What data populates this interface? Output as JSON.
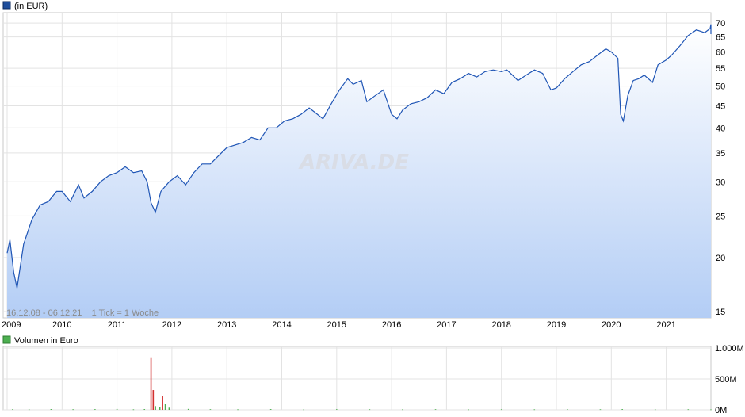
{
  "price_legend": {
    "label": "(in EUR)",
    "color": "#1f4e9c"
  },
  "volume_legend": {
    "label": "Volumen in Euro",
    "color": "#4caf50"
  },
  "info_text": "16.12.08 - 06.12.21    1 Tick = 1 Woche",
  "watermark": "ARIVA.DE",
  "chart_data": [
    {
      "type": "area",
      "scale": "log",
      "x_tick_labels": [
        "2009",
        "2010",
        "2011",
        "2012",
        "2013",
        "2014",
        "2015",
        "2016",
        "2017",
        "2018",
        "2019",
        "2020",
        "2021"
      ],
      "y_tick_labels": [
        "15",
        "20",
        "25",
        "30",
        "35",
        "40",
        "45",
        "50",
        "55",
        "60",
        "65",
        "70"
      ],
      "ylim": [
        14.5,
        74
      ],
      "grid": true,
      "x": [
        2009.0,
        2009.05,
        2009.12,
        2009.18,
        2009.3,
        2009.45,
        2009.6,
        2009.75,
        2009.9,
        2010.0,
        2010.15,
        2010.3,
        2010.4,
        2010.55,
        2010.7,
        2010.85,
        2011.0,
        2011.15,
        2011.3,
        2011.45,
        2011.55,
        2011.62,
        2011.7,
        2011.8,
        2011.95,
        2012.1,
        2012.25,
        2012.4,
        2012.55,
        2012.7,
        2012.85,
        2013.0,
        2013.15,
        2013.3,
        2013.45,
        2013.6,
        2013.75,
        2013.9,
        2014.05,
        2014.2,
        2014.35,
        2014.5,
        2014.6,
        2014.75,
        2014.9,
        2015.05,
        2015.2,
        2015.3,
        2015.45,
        2015.55,
        2015.7,
        2015.85,
        2016.0,
        2016.1,
        2016.2,
        2016.35,
        2016.5,
        2016.65,
        2016.8,
        2016.95,
        2017.1,
        2017.25,
        2017.4,
        2017.55,
        2017.7,
        2017.85,
        2018.0,
        2018.1,
        2018.2,
        2018.3,
        2018.45,
        2018.6,
        2018.75,
        2018.9,
        2019.0,
        2019.15,
        2019.3,
        2019.45,
        2019.6,
        2019.75,
        2019.9,
        2020.0,
        2020.12,
        2020.17,
        2020.22,
        2020.3,
        2020.4,
        2020.5,
        2020.6,
        2020.75,
        2020.85,
        2021.0,
        2021.1,
        2021.25,
        2021.4,
        2021.55,
        2021.7,
        2021.8,
        2021.9,
        2021.93
      ],
      "y": [
        20.5,
        22.0,
        18.5,
        17.0,
        21.5,
        24.5,
        26.5,
        27.0,
        28.5,
        28.5,
        27.0,
        29.5,
        27.5,
        28.5,
        30.0,
        31.0,
        31.5,
        32.5,
        31.5,
        31.8,
        30.0,
        26.8,
        25.5,
        28.5,
        30.0,
        31.0,
        29.5,
        31.5,
        33.0,
        33.0,
        34.5,
        36.0,
        36.5,
        37.0,
        38.0,
        37.5,
        40.0,
        40.0,
        41.5,
        42.0,
        43.0,
        44.5,
        43.5,
        42.0,
        45.5,
        49.0,
        52.0,
        50.5,
        51.5,
        46.0,
        47.5,
        49.0,
        43.0,
        42.0,
        44.0,
        45.5,
        46.0,
        47.0,
        49.0,
        48.0,
        51.0,
        52.0,
        53.5,
        52.5,
        54.0,
        54.5,
        54.0,
        54.5,
        53.0,
        51.5,
        53.0,
        54.5,
        53.5,
        49.0,
        49.5,
        52.0,
        54.0,
        56.0,
        57.0,
        59.0,
        61.0,
        60.0,
        58.0,
        43.0,
        41.5,
        47.5,
        51.5,
        52.0,
        53.0,
        51.0,
        56.0,
        57.5,
        59.0,
        62.0,
        65.5,
        67.5,
        66.5,
        68.0,
        69.5,
        66.0
      ]
    },
    {
      "type": "bar",
      "y_tick_labels": [
        "1.000M",
        "500M",
        "0M"
      ],
      "ylim": [
        0,
        1000
      ],
      "x": [
        2009.1,
        2009.4,
        2009.8,
        2010.2,
        2010.6,
        2011.0,
        2011.3,
        2011.5,
        2011.62,
        2011.66,
        2011.7,
        2011.78,
        2011.83,
        2011.88,
        2011.95,
        2012.3,
        2012.7,
        2013.2,
        2013.8,
        2014.4,
        2015.0,
        2015.6,
        2016.2,
        2016.8,
        2017.4,
        2018.0,
        2018.6,
        2019.2,
        2019.8,
        2020.2,
        2020.8,
        2021.4,
        2021.9
      ],
      "values": [
        10,
        8,
        12,
        9,
        11,
        14,
        8,
        12,
        850,
        320,
        60,
        45,
        220,
        90,
        35,
        15,
        10,
        8,
        12,
        7,
        10,
        9,
        8,
        10,
        7,
        9,
        8,
        10,
        9,
        12,
        8,
        9,
        7
      ]
    }
  ]
}
